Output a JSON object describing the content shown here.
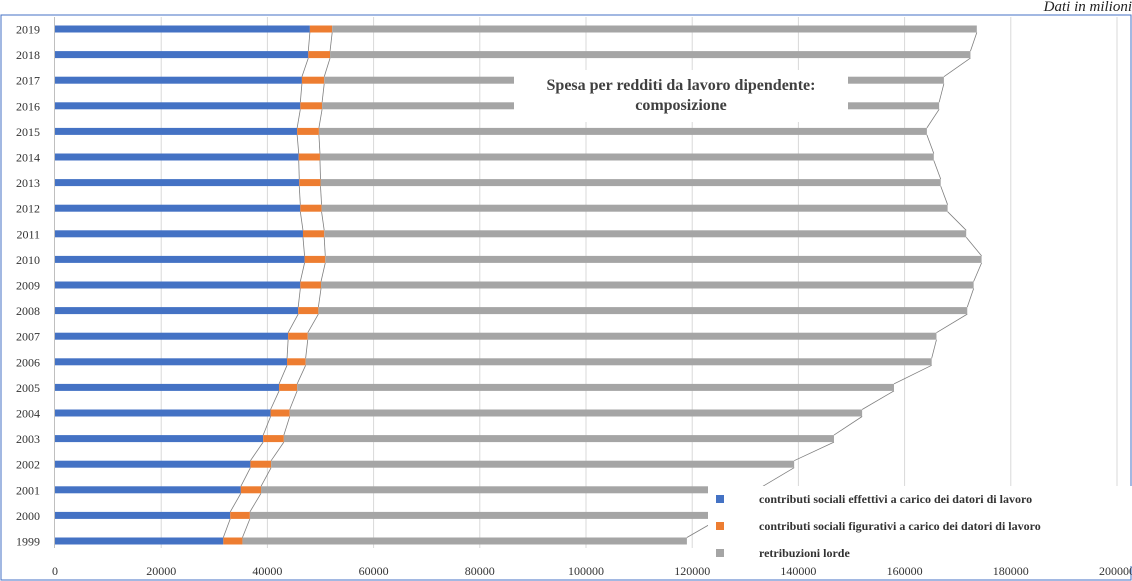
{
  "note": "Dati in milioni",
  "chart_data": {
    "type": "bar",
    "orientation": "horizontal",
    "stacked": true,
    "title": "Spesa per redditi da lavoro dipendente: composizione",
    "title_lines": [
      "Spesa per redditi da lavoro dipendente:",
      "composizione"
    ],
    "categories": [
      "1999",
      "2000",
      "2001",
      "2002",
      "2003",
      "2004",
      "2005",
      "2006",
      "2007",
      "2008",
      "2009",
      "2010",
      "2011",
      "2012",
      "2013",
      "2014",
      "2015",
      "2016",
      "2017",
      "2018",
      "2019"
    ],
    "xlim": [
      0,
      200000
    ],
    "xticks": [
      0,
      20000,
      40000,
      60000,
      80000,
      100000,
      120000,
      140000,
      160000,
      180000,
      200000
    ],
    "grid": true,
    "series_lines": true,
    "legend_position": "bottom-right",
    "series": [
      {
        "name": "contributi sociali effettivi a carico dei datori di lavoro",
        "color": "#4472C4",
        "values": [
          31700,
          33000,
          35000,
          36800,
          39200,
          40600,
          42200,
          43700,
          43900,
          45800,
          46200,
          47000,
          46700,
          46200,
          46000,
          45900,
          45600,
          46200,
          46500,
          47700,
          48000
        ]
      },
      {
        "name": "contributi sociali figurativi a carico dei datori di lavoro",
        "color": "#ED7D31",
        "values": [
          3600,
          3700,
          3800,
          3900,
          3900,
          3600,
          3400,
          3500,
          3700,
          3800,
          3900,
          3900,
          4000,
          4000,
          4000,
          4000,
          4100,
          4100,
          4200,
          4100,
          4200
        ]
      },
      {
        "name": "retribuzioni lorde",
        "color": "#A5A5A5",
        "values": [
          83700,
          88400,
          94500,
          98500,
          103600,
          107800,
          112400,
          117900,
          118400,
          122200,
          122900,
          123600,
          120900,
          117900,
          116800,
          115600,
          114500,
          116200,
          116700,
          120600,
          121400
        ]
      }
    ]
  }
}
